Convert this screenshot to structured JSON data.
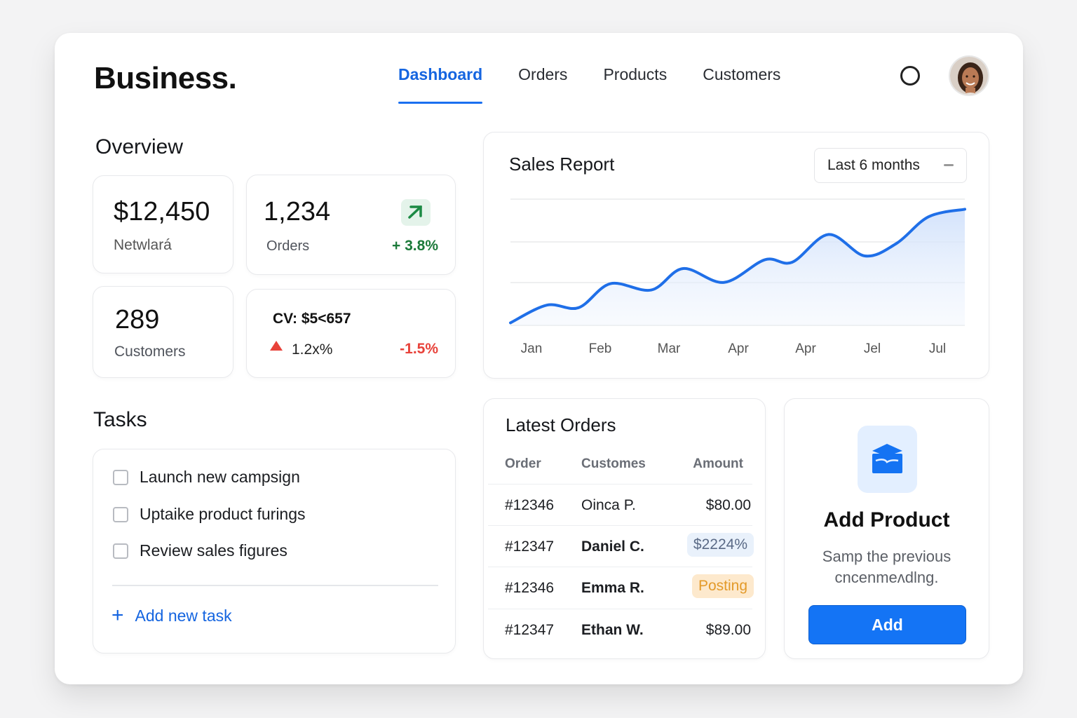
{
  "app": {
    "brand": "Business."
  },
  "nav": {
    "tabs": [
      {
        "label": "Dashboard",
        "active": true
      },
      {
        "label": "Orders"
      },
      {
        "label": "Products"
      },
      {
        "label": "Customers"
      }
    ]
  },
  "header": {
    "search_icon": "search-icon",
    "avatar_icon": "user-avatar"
  },
  "overview": {
    "title": "Overview",
    "revenue": {
      "value": "$12,450",
      "label": "Netwlará"
    },
    "orders": {
      "value": "1,234",
      "label": "Orders",
      "change": "+ 3.8%",
      "icon": "trend-up-icon"
    },
    "customers": {
      "value": "289",
      "label": "Customers"
    },
    "cv": {
      "label": "CV: $5<657",
      "sub": "1.2x%",
      "change": "-1.5%",
      "icon": "triangle-up-icon"
    }
  },
  "colors": {
    "accent": "#1a6ff0",
    "positive": "#1c7a3a",
    "negative": "#e8423a",
    "line": "#1f6fe8"
  },
  "sales_report": {
    "title": "Sales Report",
    "range": "Last 6 months",
    "chart_data": {
      "type": "area",
      "x": [
        "Jan",
        "Feb",
        "Mar",
        "Apr",
        "Apr",
        "Jel",
        "Jul"
      ],
      "values": [
        10,
        23,
        38,
        50,
        68,
        75,
        100
      ],
      "grid": true,
      "legend": "none"
    }
  },
  "tasks": {
    "title": "Tasks",
    "items": [
      {
        "label": "Launch new campsign"
      },
      {
        "label": "Uptaike product furings"
      },
      {
        "label": "Review sales figures"
      }
    ],
    "add_label": "Add new task"
  },
  "latest_orders": {
    "title": "Latest Orders",
    "columns": [
      "Order",
      "Customes",
      "Amount"
    ],
    "rows": [
      {
        "order": "#12346",
        "customer": "Oinca P.",
        "amount": "$80.00",
        "style": "plain"
      },
      {
        "order": "#12347",
        "customer": "Daniel C.",
        "amount": "$2224%",
        "style": "blue"
      },
      {
        "order": "#12346",
        "customer": "Emma R.",
        "amount": "Posting",
        "style": "orange"
      },
      {
        "order": "#12347",
        "customer": "Ethan W.",
        "amount": "$89.00",
        "style": "plain"
      }
    ]
  },
  "add_product": {
    "icon": "box-icon",
    "title": "Add Product",
    "desc_line1": "Samp the previous",
    "desc_line2": "cncenmeʌdlng.",
    "button": "Add"
  }
}
